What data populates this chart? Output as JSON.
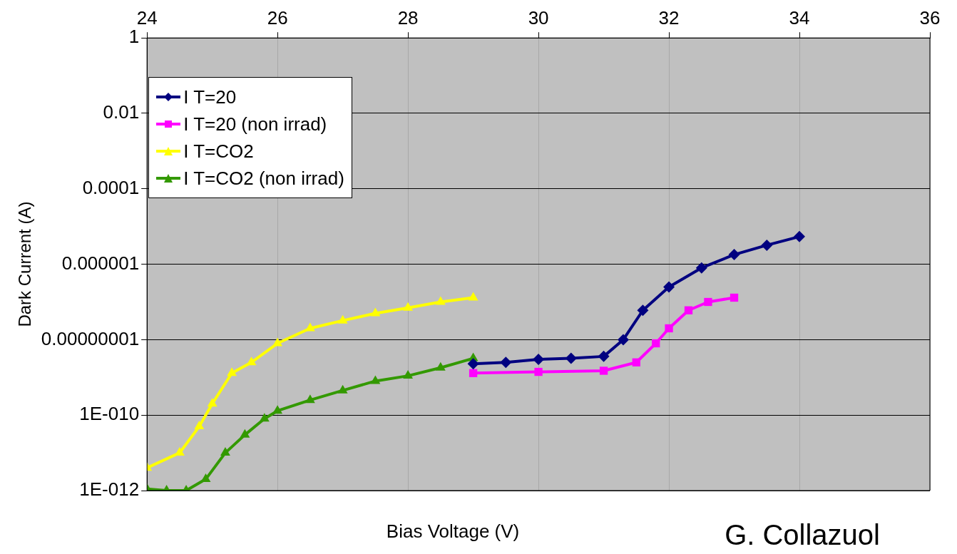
{
  "chart_data": {
    "type": "line",
    "xlabel": "Bias Voltage (V)",
    "ylabel": "Dark Current (A)",
    "annotations": [
      "G. Collazuol"
    ],
    "log": "y",
    "grid": true,
    "legend": "top left",
    "line_style": "solid",
    "xlim": [
      24,
      36
    ],
    "xticks": [
      24,
      26,
      28,
      30,
      32,
      34,
      36
    ],
    "ylim": [
      1e-12,
      1
    ],
    "yticks": [
      {
        "value": 1e-12,
        "label": "1E-012"
      },
      {
        "value": 1e-10,
        "label": "1E-010"
      },
      {
        "value": 1e-08,
        "label": "0.00000001"
      },
      {
        "value": 1e-06,
        "label": "0.000001"
      },
      {
        "value": 0.0001,
        "label": "0.0001"
      },
      {
        "value": 0.01,
        "label": "0.01"
      },
      {
        "value": 1,
        "label": "1"
      }
    ],
    "series": [
      {
        "name": "I T=20",
        "color": "#000080",
        "marker": "diamond",
        "x": [
          29,
          29.5,
          30,
          30.5,
          31,
          31.3,
          31.6,
          32,
          32.5,
          33,
          33.5,
          34
        ],
        "values": [
          2.3e-09,
          2.5e-09,
          3e-09,
          3.2e-09,
          3.6e-09,
          1e-08,
          6e-08,
          2.5e-07,
          8e-07,
          1.8e-06,
          3.2e-06,
          5.4e-06
        ]
      },
      {
        "name": "I T=20 (non irrad)",
        "color": "#ff00ff",
        "marker": "square",
        "x": [
          29,
          30,
          31,
          31.5,
          31.8,
          32,
          32.3,
          32.6,
          33
        ],
        "values": [
          1.3e-09,
          1.4e-09,
          1.5e-09,
          2.5e-09,
          8e-09,
          2e-08,
          6e-08,
          1e-07,
          1.3e-07
        ]
      },
      {
        "name": "I T=CO2",
        "color": "#ffff00",
        "marker": "triangle",
        "x": [
          24,
          24.5,
          24.8,
          25,
          25.3,
          25.6,
          26,
          26.5,
          27,
          27.5,
          28,
          28.5,
          29
        ],
        "values": [
          4e-12,
          1e-11,
          5e-11,
          2e-10,
          1.3e-09,
          2.5e-09,
          8e-09,
          2e-08,
          3.2e-08,
          5e-08,
          7e-08,
          1e-07,
          1.3e-07
        ]
      },
      {
        "name": "I T=CO2 (non irrad)",
        "color": "#339900",
        "marker": "triangle",
        "x": [
          24,
          24.3,
          24.6,
          24.9,
          25.2,
          25.5,
          25.8,
          26,
          26.5,
          27,
          27.5,
          28,
          28.5,
          29
        ],
        "values": [
          1.1e-12,
          1e-12,
          1e-12,
          2e-12,
          1e-11,
          3e-11,
          8e-11,
          1.3e-10,
          2.5e-10,
          4.5e-10,
          8e-10,
          1.1e-09,
          1.8e-09,
          3.2e-09
        ]
      }
    ]
  }
}
